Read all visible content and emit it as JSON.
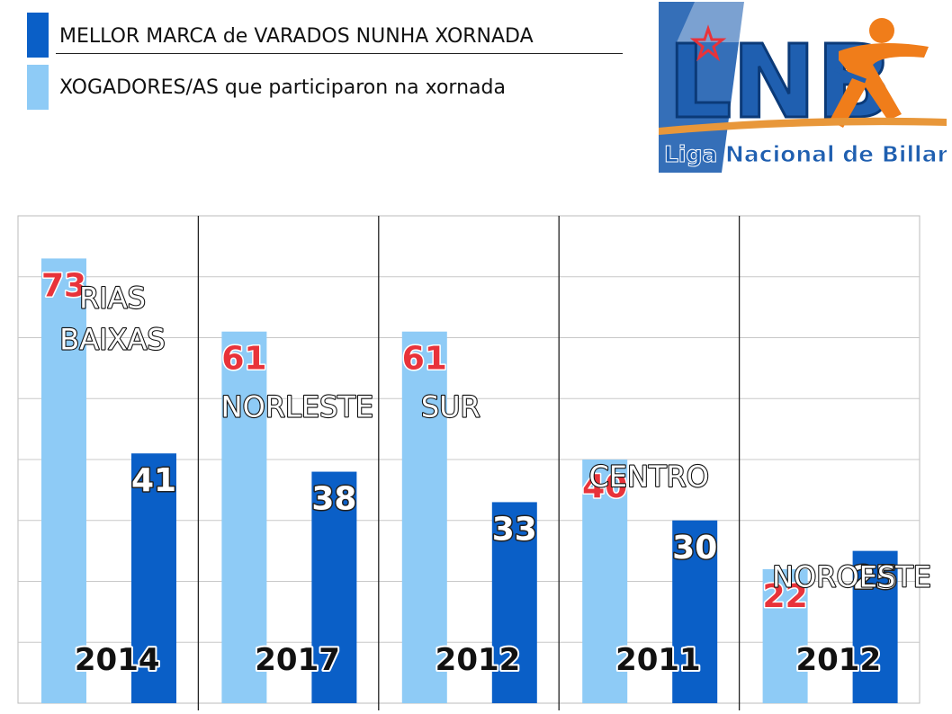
{
  "legend": [
    {
      "label": "MELLOR MARCA de VARADOS NUNHA XORNADA",
      "color": "#0a5fc7"
    },
    {
      "label": "XOGADORES/AS que participaron na xornada",
      "color": "#8ecbf6"
    }
  ],
  "logo": {
    "mark": "LNB",
    "caption": "Liga Nacional de Billarda"
  },
  "chart_data": {
    "type": "bar",
    "categories": [
      "RIAS BAIXAS",
      "NORLESTE",
      "SUR",
      "CENTRO",
      "NOROESTE"
    ],
    "years": [
      "2014",
      "2017",
      "2012",
      "2011",
      "2012"
    ],
    "series": [
      {
        "name": "XOGADORES/AS que participaron na xornada",
        "values": [
          73,
          61,
          61,
          40,
          22
        ],
        "color": "#8ecbf6",
        "label_color": "#e8333a"
      },
      {
        "name": "MELLOR MARCA de VARADOS NUNHA XORNADA",
        "values": [
          41,
          38,
          33,
          30,
          25
        ],
        "color": "#0a5fc7",
        "label_color": "#ffffff"
      }
    ],
    "ylim": [
      0,
      80
    ],
    "grid": true,
    "legend_position": "top-left"
  }
}
